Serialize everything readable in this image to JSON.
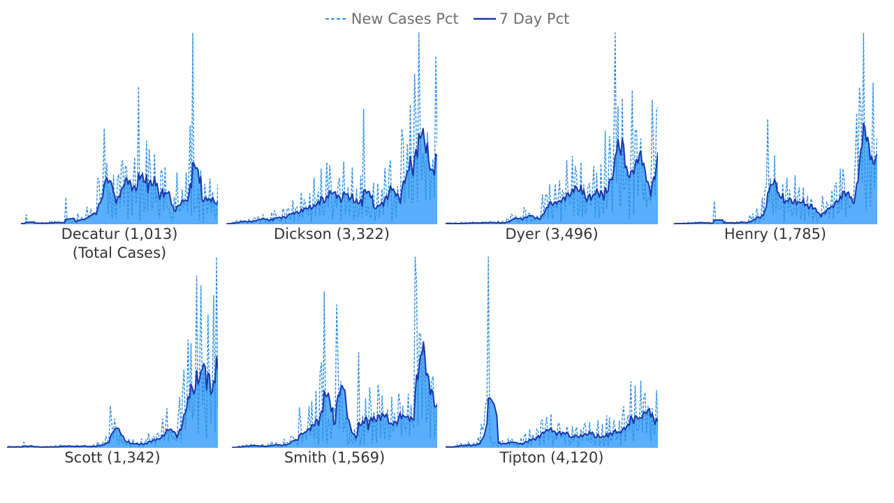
{
  "legend": {
    "new_cases_label": "New Cases Pct",
    "seven_day_label": "7 Day Pct"
  },
  "colors": {
    "area": "#5aaffa",
    "new_cases_line": "#2f8fe6",
    "seven_day_line": "#1a36a8",
    "text": "#333333",
    "legend_text": "#6e6e6e"
  },
  "chart_data": {
    "type": "area",
    "x_unit": "day",
    "series_names": [
      "New Cases Pct",
      "7 Day Pct"
    ],
    "total_cases_note": "(Total Cases)",
    "panels": [
      {
        "county": "Decatur",
        "total_cases": "1,013",
        "label": "Decatur (1,013)",
        "profile": [
          [
            0,
            0.005
          ],
          [
            0.2,
            0.01
          ],
          [
            0.33,
            0.04
          ],
          [
            0.36,
            0.14
          ],
          [
            0.42,
            0.2
          ],
          [
            0.5,
            0.15
          ],
          [
            0.55,
            0.28
          ],
          [
            0.6,
            0.22
          ],
          [
            0.68,
            0.23
          ],
          [
            0.78,
            0.12
          ],
          [
            0.85,
            0.35
          ],
          [
            0.92,
            0.14
          ],
          [
            1,
            0.12
          ]
        ],
        "spikes": [
          [
            0.03,
            0.05
          ],
          [
            0.23,
            0.14
          ],
          [
            0.42,
            0.5
          ],
          [
            0.6,
            0.72
          ],
          [
            0.87,
            1.0
          ],
          [
            0.91,
            0.28
          ]
        ]
      },
      {
        "county": "Dickson",
        "total_cases": "3,322",
        "label": "Dickson (3,322)",
        "profile": [
          [
            0,
            0.005
          ],
          [
            0.12,
            0.02
          ],
          [
            0.3,
            0.05
          ],
          [
            0.42,
            0.16
          ],
          [
            0.55,
            0.2
          ],
          [
            0.62,
            0.14
          ],
          [
            0.72,
            0.12
          ],
          [
            0.82,
            0.22
          ],
          [
            0.9,
            0.48
          ],
          [
            0.96,
            0.3
          ],
          [
            1,
            0.42
          ]
        ],
        "spikes": [
          [
            0.65,
            0.6
          ],
          [
            0.91,
            1.0
          ],
          [
            0.99,
            0.88
          ]
        ]
      },
      {
        "county": "Dyer",
        "total_cases": "3,496",
        "label": "Dyer (3,496)",
        "profile": [
          [
            0,
            0.005
          ],
          [
            0.25,
            0.01
          ],
          [
            0.38,
            0.05
          ],
          [
            0.5,
            0.12
          ],
          [
            0.55,
            0.2
          ],
          [
            0.65,
            0.18
          ],
          [
            0.72,
            0.22
          ],
          [
            0.8,
            0.42
          ],
          [
            0.86,
            0.33
          ],
          [
            0.91,
            0.38
          ],
          [
            0.95,
            0.3
          ],
          [
            1,
            0.32
          ]
        ],
        "spikes": [
          [
            0.8,
            1.0
          ],
          [
            0.88,
            0.7
          ],
          [
            0.97,
            0.65
          ]
        ]
      },
      {
        "county": "Henry",
        "total_cases": "1,785",
        "label": "Henry (1,785)",
        "profile": [
          [
            0,
            0.005
          ],
          [
            0.35,
            0.01
          ],
          [
            0.42,
            0.05
          ],
          [
            0.48,
            0.22
          ],
          [
            0.55,
            0.15
          ],
          [
            0.62,
            0.13
          ],
          [
            0.7,
            0.06
          ],
          [
            0.77,
            0.1
          ],
          [
            0.85,
            0.2
          ],
          [
            0.92,
            0.45
          ],
          [
            0.97,
            0.25
          ],
          [
            1,
            0.4
          ]
        ],
        "spikes": [
          [
            0.2,
            0.12
          ],
          [
            0.46,
            0.55
          ],
          [
            0.93,
            1.0
          ],
          [
            0.98,
            0.74
          ]
        ]
      },
      {
        "county": "Scott",
        "total_cases": "1,342",
        "label": "Scott (1,342)",
        "profile": [
          [
            0,
            0.005
          ],
          [
            0.42,
            0.01
          ],
          [
            0.48,
            0.05
          ],
          [
            0.5,
            0.12
          ],
          [
            0.55,
            0.03
          ],
          [
            0.62,
            0.02
          ],
          [
            0.73,
            0.08
          ],
          [
            0.83,
            0.18
          ],
          [
            0.9,
            0.52
          ],
          [
            0.95,
            0.38
          ],
          [
            1,
            0.55
          ]
        ],
        "spikes": [
          [
            0.08,
            0.03
          ],
          [
            0.49,
            0.22
          ],
          [
            0.92,
            0.85
          ],
          [
            0.99,
            1.0
          ]
        ]
      },
      {
        "county": "Smith",
        "total_cases": "1,569",
        "label": "Smith (1,569)",
        "profile": [
          [
            0,
            0.005
          ],
          [
            0.25,
            0.02
          ],
          [
            0.36,
            0.15
          ],
          [
            0.5,
            0.32
          ],
          [
            0.55,
            0.12
          ],
          [
            0.6,
            0.05
          ],
          [
            0.68,
            0.18
          ],
          [
            0.78,
            0.2
          ],
          [
            0.85,
            0.15
          ],
          [
            0.9,
            0.45
          ],
          [
            0.95,
            0.22
          ],
          [
            1,
            0.18
          ]
        ],
        "spikes": [
          [
            0.45,
            0.82
          ],
          [
            0.51,
            0.75
          ],
          [
            0.62,
            0.5
          ],
          [
            0.89,
            1.0
          ],
          [
            0.93,
            0.55
          ]
        ]
      },
      {
        "county": "Tipton",
        "total_cases": "4,120",
        "label": "Tipton (4,120)",
        "profile": [
          [
            0,
            0.005
          ],
          [
            0.15,
            0.02
          ],
          [
            0.2,
            0.15
          ],
          [
            0.22,
            0.02
          ],
          [
            0.35,
            0.03
          ],
          [
            0.5,
            0.1
          ],
          [
            0.6,
            0.06
          ],
          [
            0.7,
            0.08
          ],
          [
            0.8,
            0.1
          ],
          [
            0.9,
            0.22
          ],
          [
            0.95,
            0.15
          ],
          [
            1,
            0.2
          ]
        ],
        "spikes": [
          [
            0.2,
            1.0
          ],
          [
            0.18,
            0.12
          ],
          [
            0.92,
            0.35
          ],
          [
            0.99,
            0.3
          ]
        ]
      }
    ]
  }
}
